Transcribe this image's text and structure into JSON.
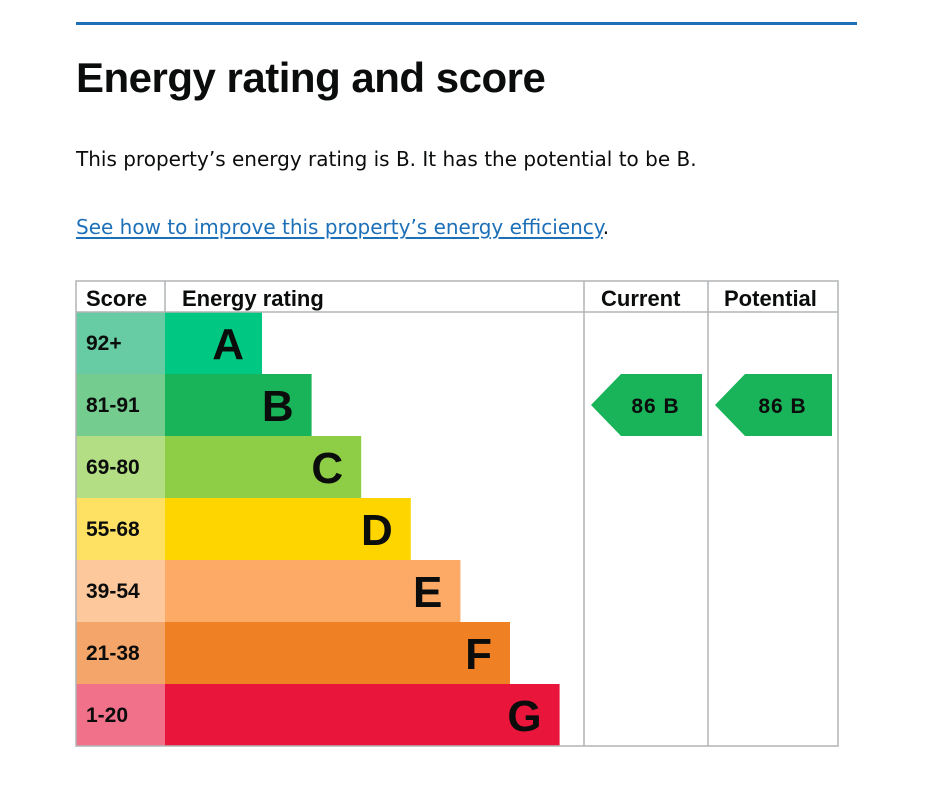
{
  "page": {
    "heading": "Energy rating and score",
    "intro": "This property’s energy rating is B. It has the potential to be B.",
    "improve_link": "See how to improve this property’s energy efficiency",
    "improve_suffix": "."
  },
  "colors": {
    "link": "#1d70b8",
    "divider": "#1d70b8",
    "grid": "#b1b4b6"
  },
  "chart_data": {
    "type": "bar",
    "headers": {
      "score": "Score",
      "rating": "Energy rating",
      "current": "Current",
      "potential": "Potential"
    },
    "bands": [
      {
        "letter": "A",
        "score": "92+",
        "color": "#00c781",
        "score_bg": "#67cba3"
      },
      {
        "letter": "B",
        "score": "81-91",
        "color": "#19b459",
        "score_bg": "#75cc8f"
      },
      {
        "letter": "C",
        "score": "69-80",
        "color": "#8dce46",
        "score_bg": "#b4de83"
      },
      {
        "letter": "D",
        "score": "55-68",
        "color": "#ffd500",
        "score_bg": "#fee163"
      },
      {
        "letter": "E",
        "score": "39-54",
        "color": "#fcaa65",
        "score_bg": "#fdc99c"
      },
      {
        "letter": "F",
        "score": "21-38",
        "color": "#ef8023",
        "score_bg": "#f4a66a"
      },
      {
        "letter": "G",
        "score": "1-20",
        "color": "#e9153b",
        "score_bg": "#f07189"
      }
    ],
    "current": {
      "value": 86,
      "band": "B",
      "label": "86 B"
    },
    "potential": {
      "value": 86,
      "band": "B",
      "label": "86 B"
    }
  }
}
